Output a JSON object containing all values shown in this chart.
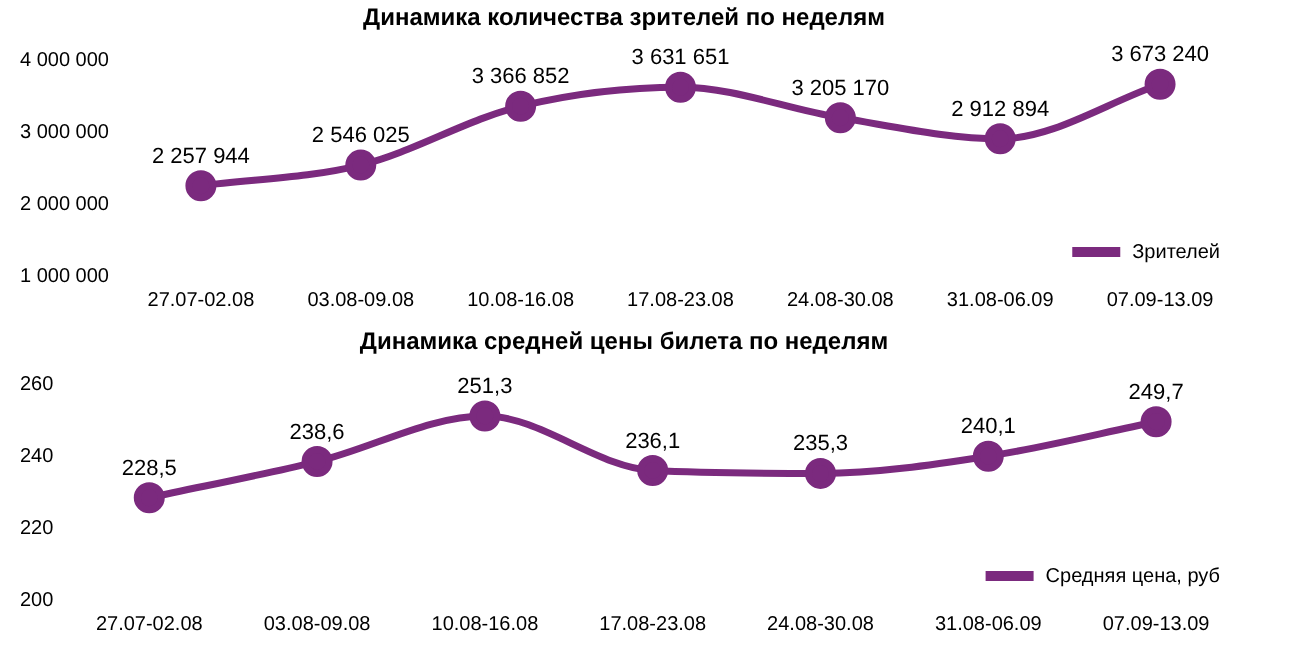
{
  "chart_data": [
    {
      "type": "line",
      "title": "Динамика количества зрителей по неделям",
      "categories": [
        "27.07-02.08",
        "03.08-09.08",
        "10.08-16.08",
        "17.08-23.08",
        "24.08-30.08",
        "31.08-06.09",
        "07.09-13.09"
      ],
      "series": [
        {
          "name": "Зрителей",
          "color": "#7b2a7e",
          "values": [
            2257944,
            2546025,
            3366852,
            3631651,
            3205170,
            2912894,
            3673240
          ],
          "value_labels": [
            "2 257 944",
            "2 546 025",
            "3 366 852",
            "3 631 651",
            "3 205 170",
            "2 912 894",
            "3 673 240"
          ]
        }
      ],
      "ylim": [
        1000000,
        4000000
      ],
      "yticks": [
        {
          "value": 1000000,
          "label": "1 000 000"
        },
        {
          "value": 2000000,
          "label": "2 000 000"
        },
        {
          "value": 3000000,
          "label": "3 000 000"
        },
        {
          "value": 4000000,
          "label": "4 000 000"
        }
      ],
      "grid": false,
      "legend": "bottom right",
      "marker": "circle"
    },
    {
      "type": "line",
      "title": "Динамика средней цены билета по неделям",
      "categories": [
        "27.07-02.08",
        "03.08-09.08",
        "10.08-16.08",
        "17.08-23.08",
        "24.08-30.08",
        "31.08-06.09",
        "07.09-13.09"
      ],
      "series": [
        {
          "name": "Средняя цена, руб",
          "color": "#7b2a7e",
          "values": [
            228.5,
            238.6,
            251.3,
            236.1,
            235.3,
            240.1,
            249.7
          ],
          "value_labels": [
            "228,5",
            "238,6",
            "251,3",
            "236,1",
            "235,3",
            "240,1",
            "249,7"
          ]
        }
      ],
      "ylim": [
        200,
        260
      ],
      "yticks": [
        200,
        220,
        240,
        260
      ],
      "grid": false,
      "legend": "bottom right",
      "marker": "circle"
    }
  ]
}
